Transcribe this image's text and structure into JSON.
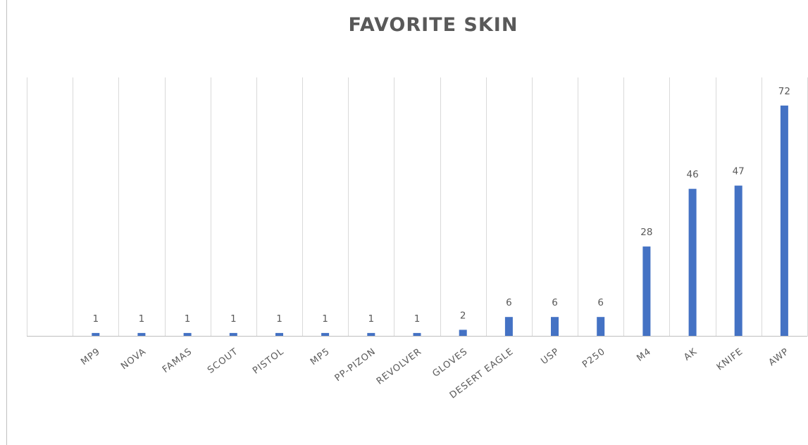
{
  "chart_data": {
    "type": "bar",
    "title": "FAVORITE SKIN",
    "categories": [
      "MP9",
      "NOVA",
      "FAMAS",
      "SCOUT",
      "PISTOL",
      "MP5",
      "PP-PIZON",
      "REVOLVER",
      "GLOVES",
      "DESERT EAGLE",
      "USP",
      "P250",
      "M4",
      "AK",
      "KNIFE",
      "AWP"
    ],
    "values": [
      1,
      1,
      1,
      1,
      1,
      1,
      1,
      1,
      2,
      6,
      6,
      6,
      28,
      46,
      47,
      72
    ],
    "ylim": [
      0,
      80
    ],
    "grid": "vertical-between-categories",
    "legend": "none",
    "colors": {
      "bar": "#4472c4",
      "text": "#595959",
      "grid": "#d9d9d9"
    }
  }
}
